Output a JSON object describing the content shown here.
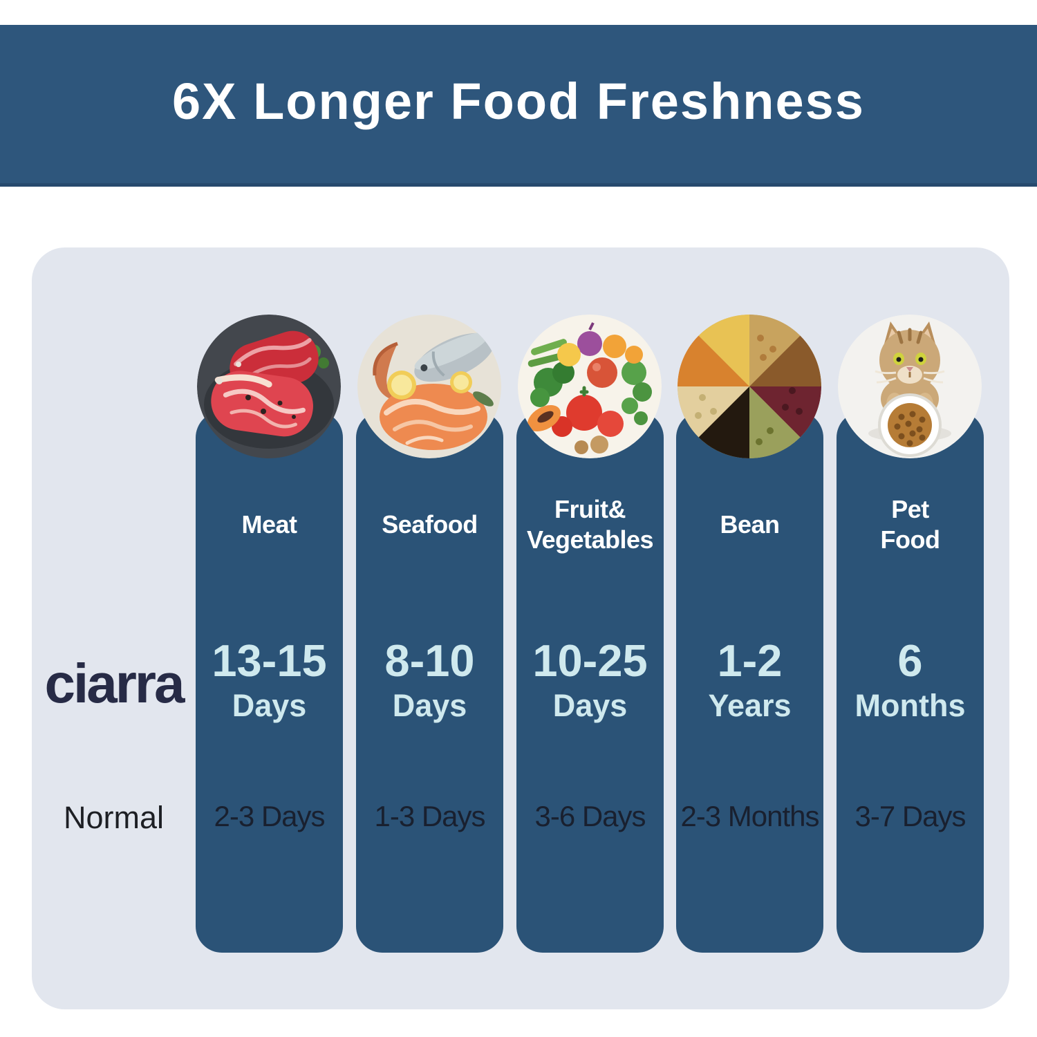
{
  "title": "6X Longer Food Freshness",
  "brand": "ciarra",
  "row_labels": {
    "normal": "Normal"
  },
  "columns": [
    {
      "id": "meat",
      "label_lines": [
        "Meat"
      ],
      "photo": "meat-photo",
      "sealed_value": "13-15",
      "sealed_unit": "Days",
      "normal_value": "2-3 Days"
    },
    {
      "id": "seafood",
      "label_lines": [
        "Seafood"
      ],
      "photo": "seafood-photo",
      "sealed_value": "8-10",
      "sealed_unit": "Days",
      "normal_value": "1-3 Days"
    },
    {
      "id": "fruit-vegetables",
      "label_lines": [
        "Fruit&",
        "Vegetables"
      ],
      "photo": "fruit-vegetables-photo",
      "sealed_value": "10-25",
      "sealed_unit": "Days",
      "normal_value": "3-6 Days"
    },
    {
      "id": "bean",
      "label_lines": [
        "Bean"
      ],
      "photo": "bean-photo",
      "sealed_value": "1-2",
      "sealed_unit": "Years",
      "normal_value": "2-3 Months"
    },
    {
      "id": "pet-food",
      "label_lines": [
        "Pet",
        "Food"
      ],
      "photo": "pet-food-photo",
      "sealed_value": "6",
      "sealed_unit": "Months",
      "normal_value": "3-7 Days"
    }
  ],
  "colors": {
    "banner": "#2e567c",
    "pill": "#2b5377",
    "panel": "#e2e6ee",
    "sealed_text": "#cfe9ee",
    "normal_text": "#19202f",
    "brand_text": "#272b46",
    "title_text": "#ffffff"
  },
  "chart_data": {
    "type": "table",
    "title": "6X Longer Food Freshness",
    "categories": [
      "Meat",
      "Seafood",
      "Fruit& Vegetables",
      "Bean",
      "Pet Food"
    ],
    "series": [
      {
        "name": "ciarra",
        "values": [
          "13-15 Days",
          "8-10 Days",
          "10-25 Days",
          "1-2 Years",
          "6 Months"
        ]
      },
      {
        "name": "Normal",
        "values": [
          "2-3 Days",
          "1-3 Days",
          "3-6 Days",
          "2-3 Months",
          "3-7 Days"
        ]
      }
    ],
    "legend_position": "left",
    "grid": false
  }
}
